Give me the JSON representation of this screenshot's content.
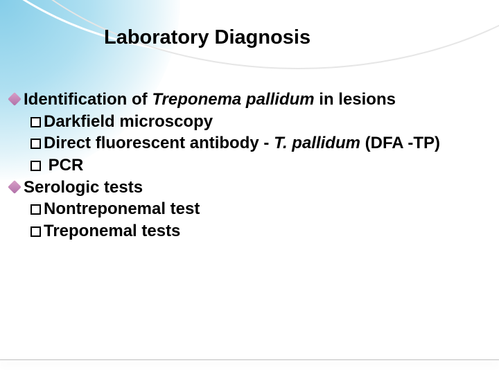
{
  "slide": {
    "title": "Laboratory Diagnosis",
    "title_color": "#000000",
    "title_fontsize": 29,
    "body_fontsize": 24,
    "body_color": "#000000",
    "body_fontweight": 700,
    "background_color": "#ffffff",
    "accent_gradient": [
      "#78c8e6",
      "#b4e1f0"
    ],
    "bullet_diamond_colors": [
      "#d9a0c8",
      "#b070a8"
    ],
    "bullet_square_border": "#000000",
    "bottom_line_color": "#bfbfbf",
    "items": [
      {
        "level": 1,
        "bullet": "diamond",
        "segments": [
          {
            "text": "Identification of ",
            "italic": false
          },
          {
            "text": "Treponema pallidum",
            "italic": true
          },
          {
            "text": " in lesions",
            "italic": false
          }
        ]
      },
      {
        "level": 2,
        "bullet": "square",
        "segments": [
          {
            "text": "Darkfield microscopy",
            "italic": false
          }
        ]
      },
      {
        "level": 2,
        "bullet": "square",
        "segments": [
          {
            "text": "Direct fluorescent antibody - ",
            "italic": false
          },
          {
            "text": "T. pallidum",
            "italic": true
          },
          {
            "text": " (DFA -TP)",
            "italic": false
          }
        ]
      },
      {
        "level": 2,
        "bullet": "square",
        "segments": [
          {
            "text": " PCR",
            "italic": false
          }
        ]
      },
      {
        "level": 1,
        "bullet": "diamond",
        "segments": [
          {
            "text": "Serologic tests",
            "italic": false
          }
        ]
      },
      {
        "level": 2,
        "bullet": "square",
        "segments": [
          {
            "text": "Nontreponemal test",
            "italic": false
          }
        ]
      },
      {
        "level": 2,
        "bullet": "square",
        "segments": [
          {
            "text": "Treponemal tests",
            "italic": false
          }
        ]
      }
    ]
  }
}
